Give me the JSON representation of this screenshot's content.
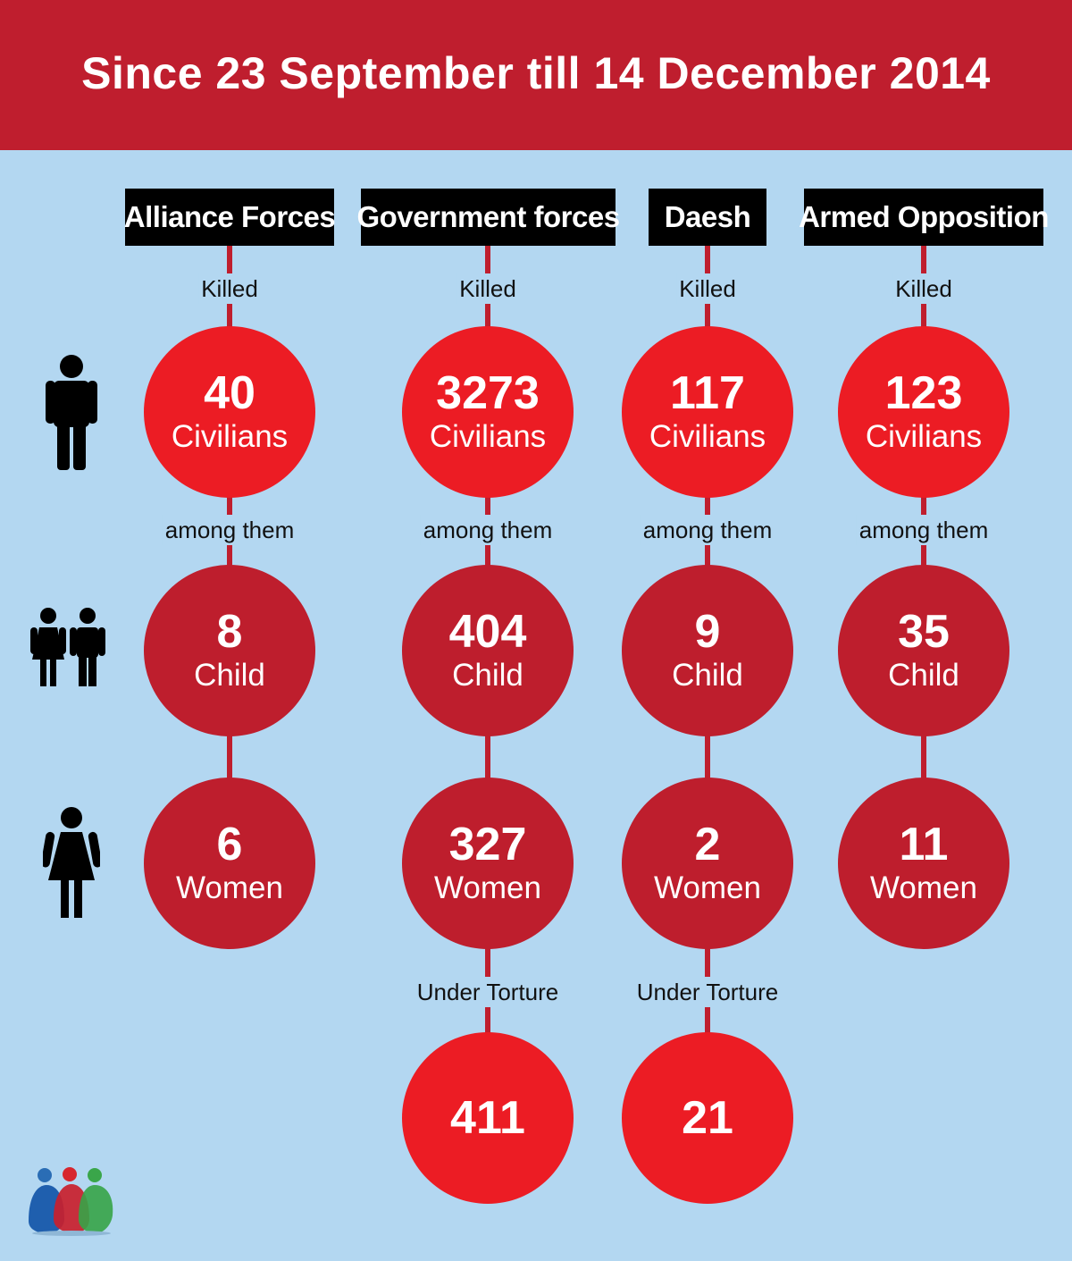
{
  "title": "Since 23 September till 14 December 2014",
  "colors": {
    "banner": "#bf1e2e",
    "background": "#b3d7f1",
    "civilians_circle": "#ec1c24",
    "sub_circle": "#be1e2d",
    "label_box": "#000000"
  },
  "labels": {
    "killed": "Killed",
    "among_them": "among them",
    "under_torture": "Under Torture"
  },
  "row_icons": [
    "man-icon",
    "children-icon",
    "woman-icon"
  ],
  "groups": [
    {
      "name": "Alliance Forces",
      "civilians": "40",
      "civilians_label": "Civilians",
      "child": "8",
      "child_label": "Child",
      "women": "6",
      "women_label": "Women"
    },
    {
      "name": "Government forces",
      "civilians": "3273",
      "civilians_label": "Civilians",
      "child": "404",
      "child_label": "Child",
      "women": "327",
      "women_label": "Women",
      "torture": "411"
    },
    {
      "name": "Daesh",
      "civilians": "117",
      "civilians_label": "Civilians",
      "child": "9",
      "child_label": "Child",
      "women": "2",
      "women_label": "Women",
      "torture": "21"
    },
    {
      "name": "Armed Opposition",
      "civilians": "123",
      "civilians_label": "Civilians",
      "child": "35",
      "child_label": "Child",
      "women": "11",
      "women_label": "Women"
    }
  ]
}
